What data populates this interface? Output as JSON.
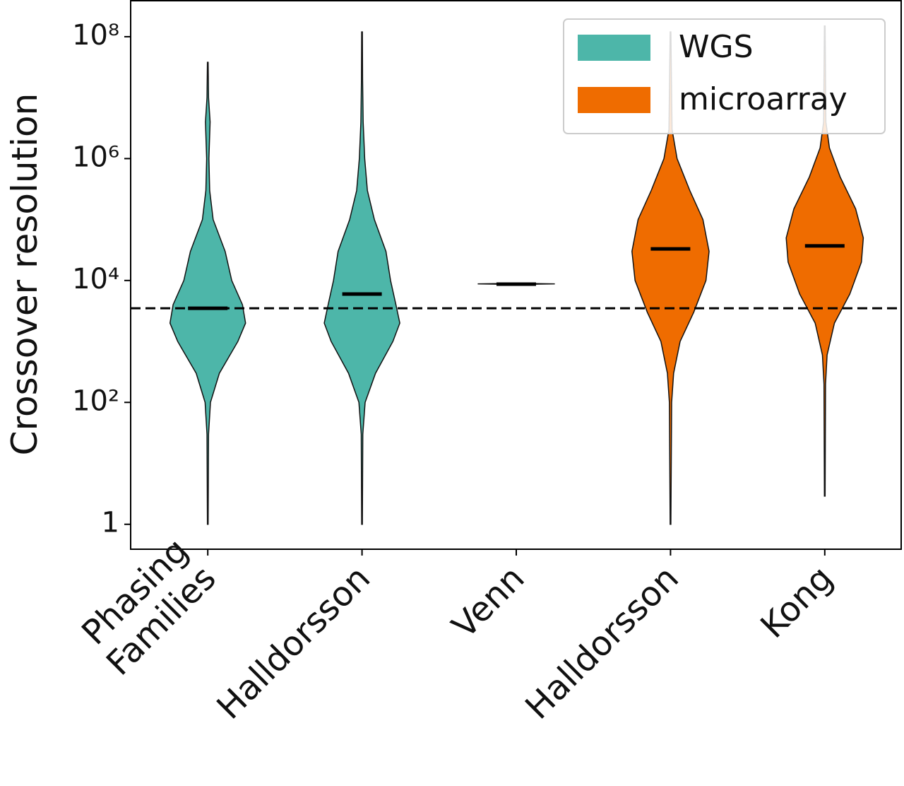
{
  "chart_data": {
    "type": "violin",
    "y_label": "Crossover resolution",
    "categories": [
      "Phasing\nFamilies",
      "Halldorsson",
      "Venn",
      "Halldorsson",
      "Kong"
    ],
    "log_scale": true,
    "ylim": [
      0.39,
      400000000
    ],
    "yticks": [
      {
        "value": 1,
        "label": "1"
      },
      {
        "value": 100,
        "label": "10²"
      },
      {
        "value": 10000,
        "label": "10⁴"
      },
      {
        "value": 1000000,
        "label": "10⁶"
      },
      {
        "value": 100000000,
        "label": "10⁸"
      }
    ],
    "hline": 3500,
    "legend": "upper right",
    "series": [
      {
        "name": "WGS",
        "color": "#4db6a9",
        "values": [
          3500,
          6000,
          8700,
          null,
          null
        ],
        "profiles": [
          {
            "y": [
              1,
              30,
              100,
              300,
              1000,
              2000,
              4000,
              10000,
              30000,
              100000,
              300000,
              1000000,
              4000000,
              10000000,
              38000000
            ],
            "width": [
              0.01,
              0.02,
              0.07,
              0.3,
              0.78,
              0.98,
              0.9,
              0.62,
              0.45,
              0.14,
              0.05,
              0.03,
              0.06,
              0.02,
              0.01
            ]
          },
          {
            "y": [
              1,
              30,
              100,
              300,
              1000,
              2000,
              4000,
              10000,
              30000,
              100000,
              300000,
              1000000,
              4000000,
              20000000,
              120000000
            ],
            "width": [
              0.01,
              0.02,
              0.08,
              0.35,
              0.8,
              0.98,
              0.88,
              0.74,
              0.62,
              0.32,
              0.14,
              0.07,
              0.03,
              0.015,
              0.01
            ]
          },
          {
            "y": [
              8600,
              8800,
              9000
            ],
            "width": [
              0.01,
              1,
              0.01
            ]
          },
          null,
          null
        ]
      },
      {
        "name": "microarray",
        "color": "#ef6c00",
        "values": [
          null,
          null,
          null,
          33000,
          37000
        ],
        "profiles": [
          null,
          null,
          null,
          {
            "y": [
              1,
              100,
              300,
              1000,
              3000,
              10000,
              30000,
              100000,
              300000,
              1000000,
              3000000,
              120000000
            ],
            "width": [
              0.01,
              0.03,
              0.08,
              0.25,
              0.6,
              0.92,
              1.0,
              0.84,
              0.5,
              0.17,
              0.04,
              0.01
            ]
          },
          {
            "y": [
              2.9,
              200,
              600,
              2000,
              6000,
              20000,
              50000,
              150000,
              500000,
              1500000,
              4000000,
              150000000
            ],
            "width": [
              0.01,
              0.02,
              0.06,
              0.25,
              0.65,
              0.95,
              1.0,
              0.8,
              0.4,
              0.12,
              0.03,
              0.01
            ]
          }
        ]
      }
    ]
  }
}
